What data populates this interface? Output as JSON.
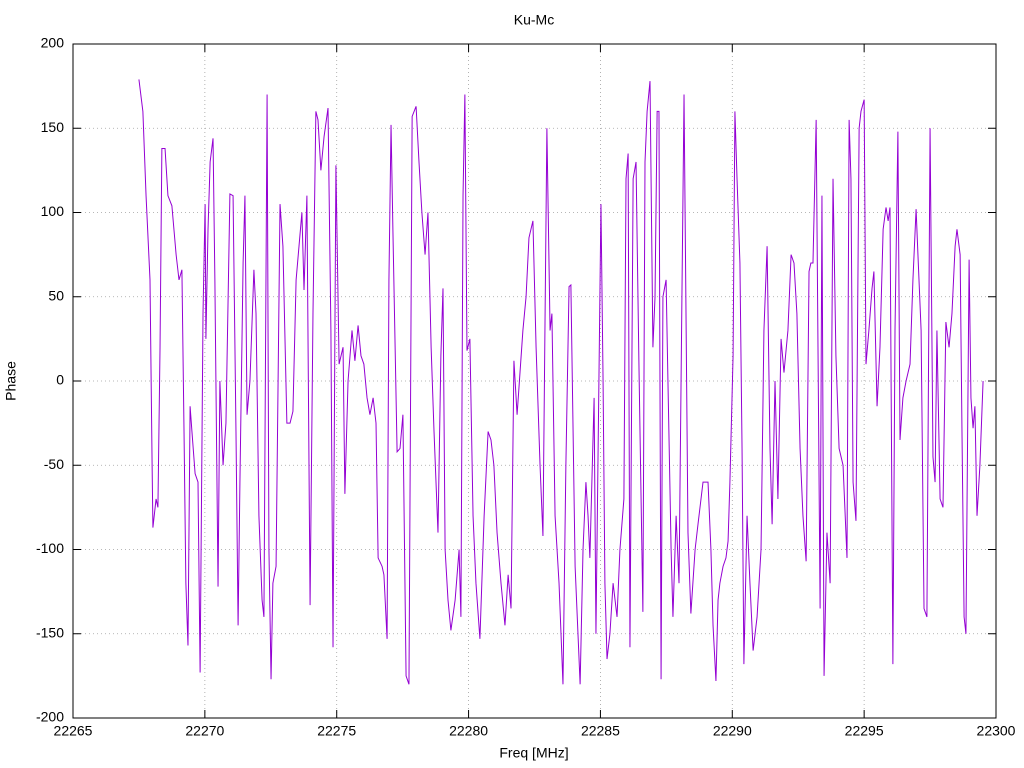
{
  "chart_data": {
    "type": "line",
    "title": "Ku-Mc",
    "x_label": "Freq [MHz]",
    "y_label": "Phase",
    "xlim": [
      22265,
      22300
    ],
    "xticks": [
      22265,
      22270,
      22275,
      22280,
      22285,
      22290,
      22295,
      22300
    ],
    "ylim": [
      -200,
      200
    ],
    "yticks": [
      -200,
      -150,
      -100,
      -50,
      0,
      50,
      100,
      150,
      200
    ],
    "grid": true,
    "series": [
      {
        "color": "#9400d3",
        "x": [
          22267.5,
          22267.65,
          22267.77,
          22267.92,
          22268.0,
          22268.03,
          22268.15,
          22268.22,
          22268.3,
          22268.37,
          22268.49,
          22268.6,
          22268.75,
          22268.91,
          22269.02,
          22269.13,
          22269.21,
          22269.28,
          22269.36,
          22269.44,
          22269.51,
          22269.63,
          22269.74,
          22269.82,
          22269.93,
          22270.01,
          22270.04,
          22270.12,
          22270.2,
          22270.31,
          22270.38,
          22270.5,
          22270.57,
          22270.69,
          22270.8,
          22270.95,
          22271.07,
          22271.18,
          22271.26,
          22271.33,
          22271.45,
          22271.52,
          22271.6,
          22271.71,
          22271.86,
          22271.94,
          22272.05,
          22272.17,
          22272.24,
          22272.36,
          22272.43,
          22272.51,
          22272.58,
          22272.7,
          22272.85,
          22272.96,
          22273.11,
          22273.23,
          22273.34,
          22273.46,
          22273.57,
          22273.68,
          22273.76,
          22273.87,
          22273.99,
          22274.1,
          22274.21,
          22274.29,
          22274.4,
          22274.52,
          22274.67,
          22274.78,
          22274.86,
          22274.97,
          22275.09,
          22275.24,
          22275.31,
          22275.43,
          22275.58,
          22275.69,
          22275.81,
          22275.92,
          22276.03,
          22276.15,
          22276.26,
          22276.38,
          22276.49,
          22276.57,
          22276.72,
          22276.79,
          22276.91,
          22276.98,
          22277.06,
          22277.13,
          22277.29,
          22277.4,
          22277.51,
          22277.63,
          22277.74,
          22277.86,
          22278.01,
          22278.12,
          22278.23,
          22278.35,
          22278.46,
          22278.58,
          22278.69,
          22278.84,
          22278.95,
          22279.03,
          22279.11,
          22279.22,
          22279.33,
          22279.49,
          22279.64,
          22279.71,
          22279.79,
          22279.86,
          22279.94,
          22280.05,
          22280.17,
          22280.28,
          22280.43,
          22280.59,
          22280.74,
          22280.85,
          22280.96,
          22281.08,
          22281.23,
          22281.38,
          22281.5,
          22281.61,
          22281.72,
          22281.84,
          22281.95,
          22282.06,
          22282.18,
          22282.29,
          22282.44,
          22282.56,
          22282.71,
          22282.82,
          22282.97,
          22283.09,
          22283.16,
          22283.28,
          22283.43,
          22283.58,
          22283.69,
          22283.81,
          22283.88,
          22284.04,
          22284.23,
          22284.34,
          22284.45,
          22284.53,
          22284.6,
          22284.76,
          22284.83,
          22284.95,
          22285.02,
          22285.1,
          22285.17,
          22285.25,
          22285.36,
          22285.48,
          22285.63,
          22285.74,
          22285.89,
          22285.97,
          22286.05,
          22286.12,
          22286.24,
          22286.35,
          22286.46,
          22286.61,
          22286.69,
          22286.77,
          22286.88,
          22286.99,
          22287.07,
          22287.15,
          22287.22,
          22287.3,
          22287.37,
          22287.49,
          22287.56,
          22287.68,
          22287.75,
          22287.87,
          22287.98,
          22288.09,
          22288.17,
          22288.32,
          22288.43,
          22288.59,
          22288.7,
          22288.89,
          22289.08,
          22289.19,
          22289.27,
          22289.38,
          22289.46,
          22289.53,
          22289.65,
          22289.76,
          22289.84,
          22289.91,
          22290.03,
          22290.1,
          22290.18,
          22290.29,
          22290.37,
          22290.44,
          22290.56,
          22290.67,
          22290.79,
          22290.94,
          22291.09,
          22291.2,
          22291.32,
          22291.43,
          22291.51,
          22291.62,
          22291.73,
          22291.85,
          22291.96,
          22292.11,
          22292.23,
          22292.34,
          22292.45,
          22292.57,
          22292.68,
          22292.8,
          22292.91,
          22292.98,
          22293.06,
          22293.18,
          22293.25,
          22293.33,
          22293.4,
          22293.48,
          22293.59,
          22293.71,
          22293.82,
          22293.93,
          22294.05,
          22294.2,
          22294.35,
          22294.43,
          22294.5,
          22294.58,
          22294.69,
          22294.81,
          22294.88,
          22295.0,
          22295.07,
          22295.18,
          22295.3,
          22295.37,
          22295.49,
          22295.6,
          22295.72,
          22295.83,
          22295.91,
          22295.98,
          22296.09,
          22296.17,
          22296.28,
          22296.36,
          22296.47,
          22296.59,
          22296.74,
          22296.85,
          22296.97,
          22297.04,
          22297.16,
          22297.27,
          22297.38,
          22297.5,
          22297.61,
          22297.69,
          22297.76,
          22297.88,
          22297.99,
          22298.1,
          22298.22,
          22298.33,
          22298.45,
          22298.52,
          22298.64,
          22298.71,
          22298.79,
          22298.86,
          22298.98,
          22299.05,
          22299.13,
          22299.2,
          22299.28,
          22299.39,
          22299.51
        ],
        "values": [
          179,
          160,
          110,
          60,
          -50,
          -87,
          -70,
          -75,
          20,
          138,
          138,
          110,
          104,
          75,
          60,
          66,
          -30,
          -120,
          -157,
          -15,
          -30,
          -55,
          -60,
          -173,
          40,
          105,
          25,
          90,
          130,
          144,
          60,
          -122,
          0,
          -50,
          -25,
          111,
          110,
          -30,
          -145,
          -60,
          70,
          110,
          -20,
          0,
          66,
          40,
          -80,
          -130,
          -140,
          170,
          -100,
          -177,
          -120,
          -110,
          105,
          80,
          -25,
          -25,
          -18,
          60,
          80,
          100,
          54,
          110,
          -133,
          40,
          160,
          155,
          125,
          145,
          162,
          30,
          -158,
          128,
          10,
          20,
          -67,
          0,
          30,
          12,
          33,
          15,
          10,
          -10,
          -20,
          -10,
          -25,
          -105,
          -110,
          -115,
          -153,
          60,
          152,
          90,
          -42,
          -40,
          -20,
          -175,
          -180,
          157,
          163,
          130,
          100,
          75,
          100,
          20,
          -30,
          -90,
          15,
          55,
          -100,
          -130,
          -148,
          -130,
          -100,
          -140,
          110,
          170,
          18,
          25,
          -80,
          -120,
          -153,
          -80,
          -30,
          -35,
          -50,
          -90,
          -120,
          -145,
          -115,
          -135,
          12,
          -20,
          5,
          30,
          50,
          85,
          95,
          20,
          -50,
          -92,
          150,
          30,
          40,
          -80,
          -120,
          -180,
          -50,
          56,
          57,
          -110,
          -180,
          -100,
          -60,
          -80,
          -105,
          -10,
          -150,
          10,
          105,
          0,
          -120,
          -165,
          -150,
          -120,
          -140,
          -100,
          -70,
          120,
          135,
          -158,
          120,
          130,
          10,
          -137,
          130,
          160,
          178,
          20,
          50,
          160,
          160,
          -177,
          50,
          60,
          0,
          -100,
          -140,
          -80,
          -120,
          50,
          170,
          -90,
          -138,
          -100,
          -85,
          -60,
          -60,
          -100,
          -145,
          -178,
          -130,
          -120,
          -110,
          -105,
          -95,
          -60,
          15,
          160,
          120,
          70,
          -40,
          -168,
          -80,
          -120,
          -160,
          -140,
          -100,
          30,
          80,
          -40,
          -85,
          0,
          -70,
          25,
          5,
          30,
          75,
          70,
          40,
          -40,
          -80,
          -107,
          65,
          70,
          70,
          155,
          20,
          -135,
          110,
          -175,
          -90,
          -120,
          120,
          15,
          -40,
          -50,
          -105,
          155,
          120,
          -60,
          -83,
          150,
          160,
          167,
          10,
          30,
          55,
          65,
          -15,
          20,
          90,
          103,
          95,
          103,
          -168,
          30,
          148,
          -35,
          -10,
          0,
          10,
          60,
          102,
          75,
          30,
          -135,
          -140,
          150,
          -45,
          -60,
          30,
          -70,
          -75,
          35,
          20,
          40,
          80,
          90,
          75,
          -30,
          -140,
          -150,
          72,
          -10,
          -28,
          -15,
          -80,
          -50,
          0
        ]
      }
    ]
  }
}
